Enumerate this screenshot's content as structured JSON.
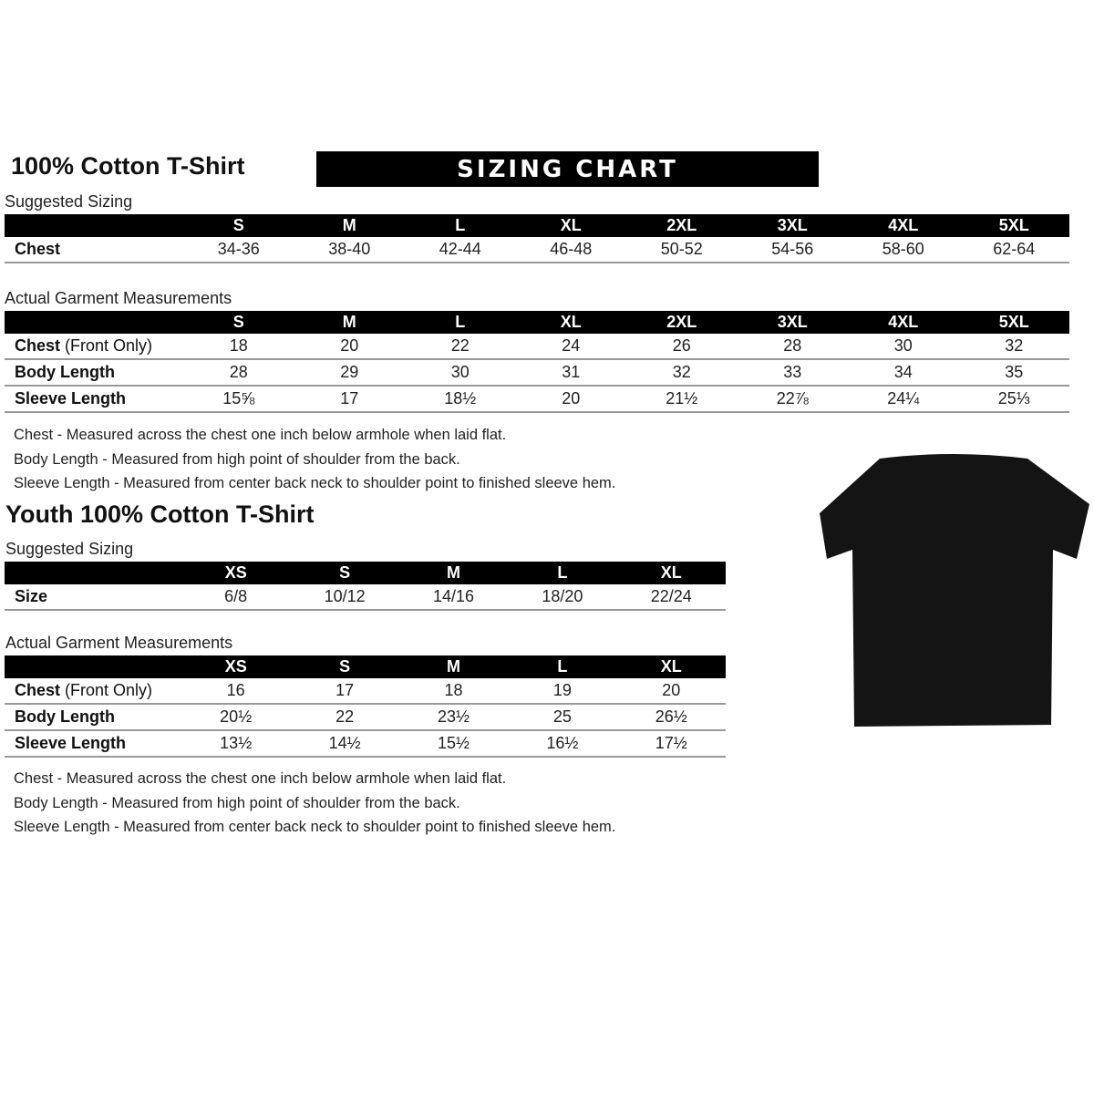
{
  "adult": {
    "title": "100% Cotton T-Shirt",
    "banner": "SIZING CHART",
    "suggested_label": "Suggested Sizing",
    "sizes": [
      "S",
      "M",
      "L",
      "XL",
      "2XL",
      "3XL",
      "4XL",
      "5XL"
    ],
    "suggested_rows": [
      {
        "label": "Chest",
        "values": [
          "34-36",
          "38-40",
          "42-44",
          "46-48",
          "50-52",
          "54-56",
          "58-60",
          "62-64"
        ]
      }
    ],
    "actual_label": "Actual Garment Measurements",
    "actual_rows": [
      {
        "label": "Chest",
        "label_suffix": " (Front Only)",
        "values": [
          "18",
          "20",
          "22",
          "24",
          "26",
          "28",
          "30",
          "32"
        ]
      },
      {
        "label": "Body Length",
        "label_suffix": "",
        "values": [
          "28",
          "29",
          "30",
          "31",
          "32",
          "33",
          "34",
          "35"
        ]
      },
      {
        "label": "Sleeve Length",
        "label_suffix": "",
        "values": [
          "15⅝",
          "17",
          "18½",
          "20",
          "21½",
          "22⅞",
          "24¼",
          "25⅓"
        ]
      }
    ],
    "notes": [
      "Chest - Measured across the chest one inch below armhole when laid flat.",
      "Body Length - Measured from high point of shoulder from the back.",
      "Sleeve Length - Measured from center back neck to shoulder point to finished sleeve hem."
    ]
  },
  "youth": {
    "title": "Youth 100% Cotton T-Shirt",
    "suggested_label": "Suggested Sizing",
    "sizes": [
      "XS",
      "S",
      "M",
      "L",
      "XL"
    ],
    "suggested_rows": [
      {
        "label": "Size",
        "values": [
          "6/8",
          "10/12",
          "14/16",
          "18/20",
          "22/24"
        ]
      }
    ],
    "actual_label": "Actual Garment Measurements",
    "actual_rows": [
      {
        "label": "Chest",
        "label_suffix": " (Front Only)",
        "values": [
          "16",
          "17",
          "18",
          "19",
          "20"
        ]
      },
      {
        "label": "Body Length",
        "label_suffix": "",
        "values": [
          "20½",
          "22",
          "23½",
          "25",
          "26½"
        ]
      },
      {
        "label": "Sleeve Length",
        "label_suffix": "",
        "values": [
          "13½",
          "14½",
          "15½",
          "16½",
          "17½"
        ]
      }
    ],
    "notes": [
      "Chest - Measured across the chest one inch below armhole when laid flat.",
      "Body Length - Measured from high point of shoulder from the back.",
      "Sleeve Length - Measured from center back neck to shoulder point to finished sleeve hem."
    ]
  },
  "shirt_color": "#141414"
}
